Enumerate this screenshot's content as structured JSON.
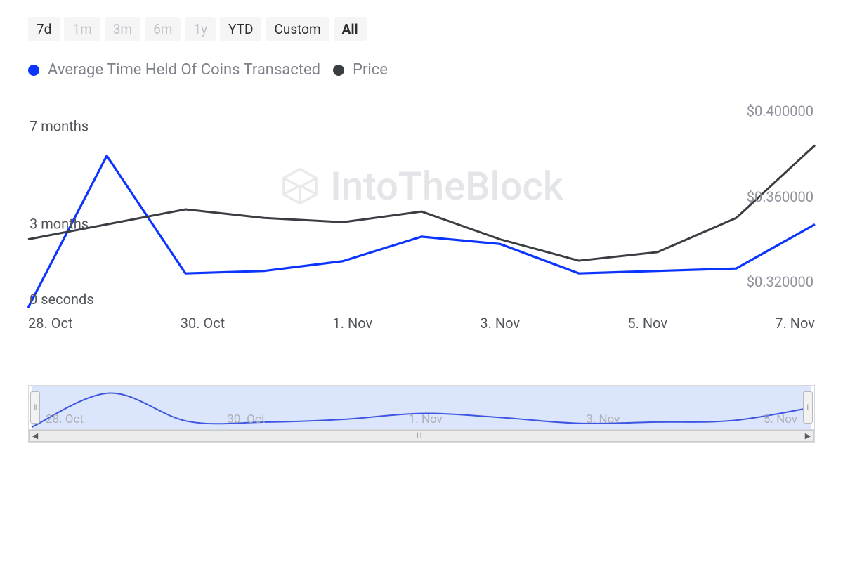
{
  "timerange": {
    "buttons": [
      {
        "label": "7d",
        "style": "dark"
      },
      {
        "label": "1m",
        "style": "light"
      },
      {
        "label": "3m",
        "style": "light"
      },
      {
        "label": "6m",
        "style": "light"
      },
      {
        "label": "1y",
        "style": "light"
      },
      {
        "label": "YTD",
        "style": "dark"
      },
      {
        "label": "Custom",
        "style": "dark"
      },
      {
        "label": "All",
        "style": "active"
      }
    ]
  },
  "legend": {
    "series": [
      {
        "label": "Average Time Held Of Coins Transacted",
        "color": "#0b35ff"
      },
      {
        "label": "Price",
        "color": "#3a3d42"
      }
    ]
  },
  "watermark_text": "IntoTheBlock",
  "chart": {
    "type": "line-dual-axis",
    "background_color": "#ffffff",
    "left_axis": {
      "ticks": [
        "7 months",
        "3 months",
        "0 seconds"
      ],
      "tick_values": [
        7,
        3,
        0
      ],
      "ylim": [
        0,
        8.2
      ],
      "label_fontsize": 20,
      "label_color": "#52555c"
    },
    "right_axis": {
      "ticks": [
        "$0.400000",
        "$0.360000",
        "$0.320000"
      ],
      "tick_values": [
        0.4,
        0.36,
        0.32
      ],
      "ylim": [
        0.308,
        0.402
      ],
      "label_fontsize": 20,
      "label_color": "#8e919a"
    },
    "x_axis": {
      "ticks": [
        "28. Oct",
        "30. Oct",
        "1. Nov",
        "3. Nov",
        "5. Nov",
        "7. Nov"
      ],
      "tick_values": [
        0,
        2,
        4,
        6,
        8,
        10
      ],
      "xlim": [
        0,
        10
      ],
      "label_fontsize": 20,
      "label_color": "#52555c"
    },
    "series": [
      {
        "name": "avg_time_held",
        "axis": "left",
        "color": "#0b35ff",
        "line_width": 3.2,
        "points": [
          {
            "x": 0,
            "y": 0.0
          },
          {
            "x": 1,
            "y": 6.2
          },
          {
            "x": 2,
            "y": 1.4
          },
          {
            "x": 3,
            "y": 1.5
          },
          {
            "x": 4,
            "y": 1.9
          },
          {
            "x": 5,
            "y": 2.9
          },
          {
            "x": 6,
            "y": 2.6
          },
          {
            "x": 7,
            "y": 1.4
          },
          {
            "x": 8,
            "y": 1.5
          },
          {
            "x": 9,
            "y": 1.6
          },
          {
            "x": 10,
            "y": 3.4
          }
        ]
      },
      {
        "name": "price",
        "axis": "right",
        "color": "#3a3d42",
        "line_width": 3.0,
        "points": [
          {
            "x": 0,
            "y": 0.34
          },
          {
            "x": 1,
            "y": 0.347
          },
          {
            "x": 2,
            "y": 0.354
          },
          {
            "x": 3,
            "y": 0.35
          },
          {
            "x": 4,
            "y": 0.348
          },
          {
            "x": 5,
            "y": 0.353
          },
          {
            "x": 6,
            "y": 0.34
          },
          {
            "x": 7,
            "y": 0.33
          },
          {
            "x": 8,
            "y": 0.334
          },
          {
            "x": 9,
            "y": 0.35
          },
          {
            "x": 10,
            "y": 0.384
          }
        ]
      }
    ],
    "baseline_y": 0,
    "navigator": {
      "selection_color": "#dbe5fb",
      "line_color": "#3d55e0",
      "line_width": 2,
      "points": [
        {
          "x": 0,
          "y": 0.05
        },
        {
          "x": 1,
          "y": 0.92
        },
        {
          "x": 2,
          "y": 0.2
        },
        {
          "x": 3,
          "y": 0.18
        },
        {
          "x": 4,
          "y": 0.25
        },
        {
          "x": 5,
          "y": 0.4
        },
        {
          "x": 6,
          "y": 0.3
        },
        {
          "x": 7,
          "y": 0.15
        },
        {
          "x": 8,
          "y": 0.18
        },
        {
          "x": 9,
          "y": 0.22
        },
        {
          "x": 10,
          "y": 0.55
        }
      ],
      "x_ticks": [
        "28. Oct",
        "30. Oct",
        "1. Nov",
        "3. Nov",
        "5. Nov"
      ]
    }
  }
}
